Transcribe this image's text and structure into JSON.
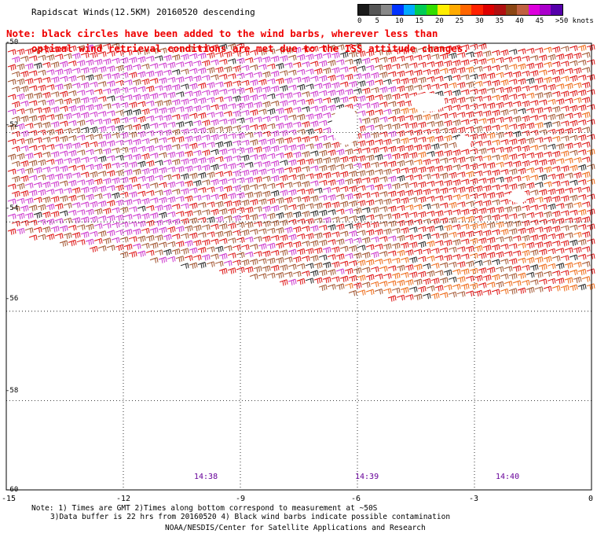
{
  "title": "Rapidscat Winds(12.5KM) 20160520 descending",
  "note": {
    "line1": "Note: black circles have been added to the wind barbs, wherever less than",
    "line2": "optimal wind retrieval conditions are met due to the ISS attitude changes."
  },
  "legend": {
    "labels": [
      "0",
      "5",
      "10",
      "15",
      "20",
      "25",
      "30",
      "35",
      "40",
      "45",
      ">50 knots"
    ],
    "colors": [
      "#1a1a1a",
      "#555555",
      "#888888",
      "#0033ff",
      "#00aaff",
      "#00cc55",
      "#33dd00",
      "#ffee00",
      "#ffaa00",
      "#ff6600",
      "#ff2200",
      "#dd0000",
      "#b01010",
      "#8b4513",
      "#c06040",
      "#dd00dd",
      "#aa00cc",
      "#5500aa"
    ]
  },
  "map": {
    "lat_labels": [
      "-50",
      "-52",
      "-54",
      "-56",
      "-58",
      "-60"
    ],
    "lon_labels": [
      "-15",
      "-12",
      "-9",
      "-6",
      "-3",
      "0"
    ],
    "lat_range": [
      -60,
      -50
    ],
    "lon_range": [
      -15,
      0
    ],
    "time_labels": [
      "14:38",
      "14:39",
      "14:40"
    ],
    "wind_colors": {
      "speed_35_40": "#dd1111",
      "speed_40_45": "#a0522d",
      "speed_45_50": "#cc33cc",
      "speed_50_plus": "#222222",
      "speed_30_35": "#ee6611"
    }
  },
  "footnote": {
    "line1": "Note: 1) Times are GMT 2)Times along bottom correspond to measurement at ~50S",
    "line2": "3)Data buffer is 22 hrs from 20160520 4) Black wind barbs indicate possible contamination"
  },
  "credit": "NOAA/NESDIS/Center for Satellite Applications and Research"
}
